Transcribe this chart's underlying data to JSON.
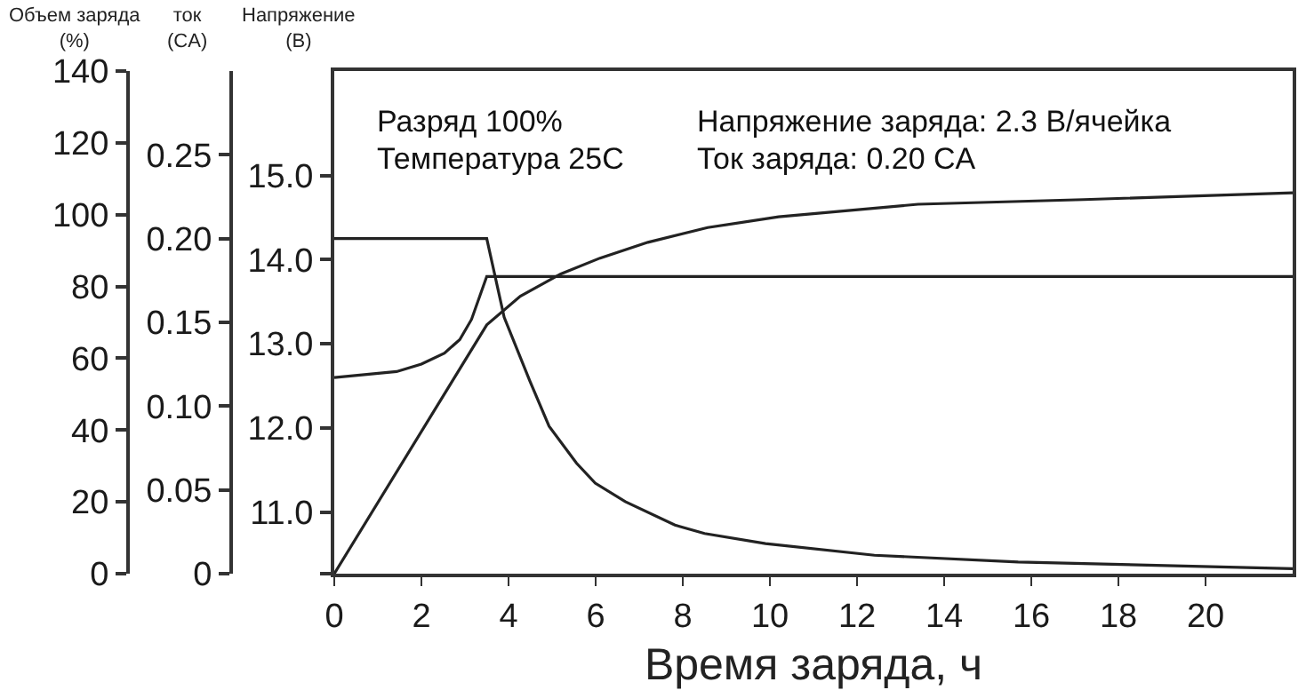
{
  "chart_data": {
    "type": "line",
    "xlabel": "Время заряда, ч",
    "ylabel": "Объем заряда\n(%)",
    "y2label": "ток\n(CA)",
    "y3label": "Напряжение\n(В)",
    "annotations": [
      "Разряд 100%",
      "Напряжение заряда: 2.3 В/ячейка",
      "Температура 25C",
      "Ток заряда: 0.20 CA"
    ],
    "xlim": [
      0,
      22
    ],
    "xticks": [
      0,
      2,
      4,
      6,
      8,
      10,
      12,
      14,
      16,
      18,
      20
    ],
    "ylim": [
      0,
      140
    ],
    "yticks": [
      0,
      20,
      40,
      60,
      80,
      100,
      120,
      140
    ],
    "y2lim": [
      0,
      0.3
    ],
    "y2ticks": [
      0,
      0.05,
      {
        "value": 0.1,
        "label": "0.10"
      },
      0.15,
      {
        "value": 0.2,
        "label": "0.20"
      },
      0.25
    ],
    "y3lim": [
      10.27,
      16.24
    ],
    "y3ticks": [
      {
        "value": 10.27,
        "label": null
      },
      {
        "value": 11,
        "label": "11.0"
      },
      {
        "value": 12,
        "label": "12.0"
      },
      {
        "value": 13,
        "label": "13.0"
      },
      {
        "value": 14,
        "label": "14.0"
      },
      {
        "value": 15,
        "label": "15.0"
      }
    ],
    "grid": false,
    "marker": "none",
    "line_style": "solid",
    "series": [
      {
        "axis": "y",
        "color": "#222222",
        "x": [
          0,
          3.5,
          4.27,
          5.2,
          6.1,
          7.2,
          8.57,
          10.2,
          13.4,
          17.2,
          22
        ],
        "values": [
          0,
          69.3,
          77.3,
          83.5,
          87.9,
          92.3,
          96.4,
          99.4,
          102.9,
          104.2,
          106.1
        ]
      },
      {
        "axis": "y2",
        "color": "#222222",
        "x": [
          0,
          3.5,
          3.9,
          4.49,
          4.93,
          5.56,
          5.99,
          6.68,
          7.82,
          8.5,
          9.9,
          12.4,
          15.7,
          22
        ],
        "values": [
          0.2,
          0.2,
          0.153,
          0.115,
          0.088,
          0.066,
          0.054,
          0.043,
          0.029,
          0.024,
          0.018,
          0.011,
          0.007,
          0.003
        ]
      },
      {
        "axis": "y3",
        "color": "#222222",
        "x": [
          0,
          1.43,
          2,
          2.53,
          2.88,
          3.15,
          3.5,
          22
        ],
        "values": [
          12.6,
          12.67,
          12.76,
          12.89,
          13.05,
          13.29,
          13.8,
          13.8
        ]
      }
    ]
  }
}
